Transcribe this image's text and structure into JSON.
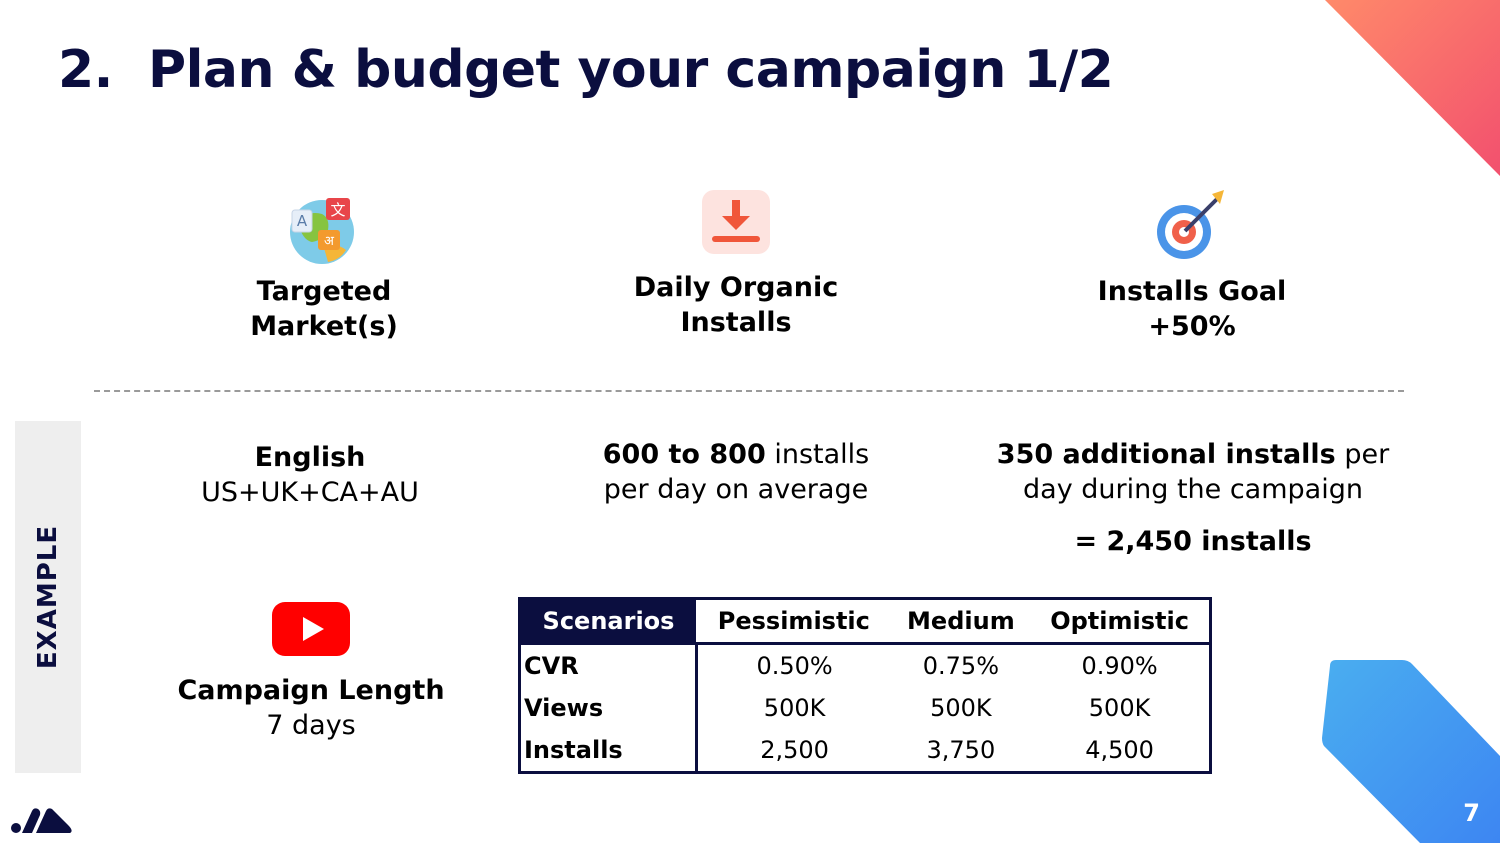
{
  "slide": {
    "title_number": "2.",
    "title_text": "Plan & budget your campaign 1/2",
    "page_number": "7"
  },
  "columns": [
    {
      "icon": "translate-globe-icon",
      "label_line1": "Targeted",
      "label_line2": "Market(s)"
    },
    {
      "icon": "download-icon",
      "label_line1": "Daily Organic",
      "label_line2": "Installs"
    },
    {
      "icon": "target-icon",
      "label_line1": "Installs Goal",
      "label_line2": "+50%"
    }
  ],
  "example": {
    "label": "EXAMPLE",
    "market_bold": "English",
    "market_regions": "US+UK+CA+AU",
    "organic_bold": "600 to 800",
    "organic_rest1": " installs",
    "organic_rest2": "per day on average",
    "goal_bold": "350 additional installs",
    "goal_rest1": " per",
    "goal_rest2": "day during the campaign",
    "goal_total": "= 2,450 installs",
    "campaign_icon": "youtube-icon",
    "campaign_label": "Campaign Length",
    "campaign_value": "7 days"
  },
  "table": {
    "headers": [
      "Scenarios",
      "Pessimistic",
      "Medium",
      "Optimistic"
    ],
    "rows": [
      {
        "label": "CVR",
        "values": [
          "0.50%",
          "0.75%",
          "0.90%"
        ]
      },
      {
        "label": "Views",
        "values": [
          "500K",
          "500K",
          "500K"
        ]
      },
      {
        "label": "Installs",
        "values": [
          "2,500",
          "3,750",
          "4,500"
        ]
      }
    ]
  },
  "colors": {
    "navy": "#0b0e3f",
    "accent_coral": "#f2596a",
    "accent_blue": "#3d8ef2",
    "youtube_red": "#ff0000"
  }
}
